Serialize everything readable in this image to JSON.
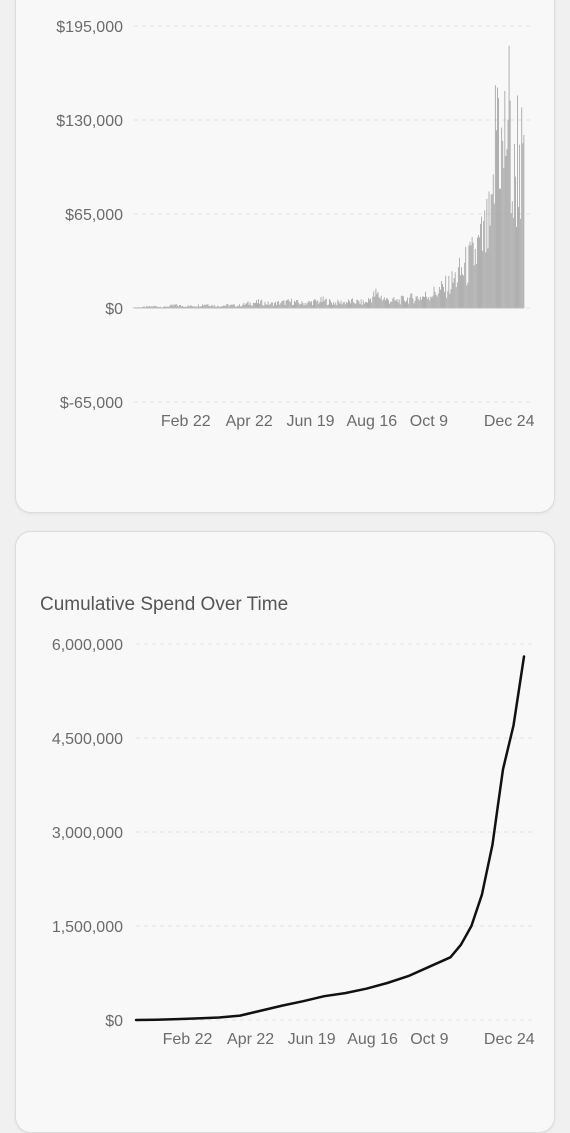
{
  "chart_data": [
    {
      "type": "bar",
      "title": "",
      "ylim": [
        -65000,
        195000
      ],
      "y_ticks": [
        "$195,000",
        "$130,000",
        "$65,000",
        "$0",
        "$-65,000"
      ],
      "y_tick_values": [
        195000,
        130000,
        65000,
        0,
        -65000
      ],
      "x_ticks": [
        "Feb 22",
        "Apr 22",
        "Jun 19",
        "Aug 16",
        "Oct 9",
        "Dec 24"
      ],
      "x_tick_days": [
        50,
        110,
        168,
        226,
        280,
        356
      ],
      "x_range_days": [
        1,
        370
      ],
      "grid": true,
      "bar_color": "#9e9e9e",
      "note": "",
      "daily_values_sampled": [
        [
          1,
          500
        ],
        [
          10,
          800
        ],
        [
          20,
          1500
        ],
        [
          30,
          900
        ],
        [
          40,
          2500
        ],
        [
          50,
          1500
        ],
        [
          60,
          2000
        ],
        [
          70,
          3500
        ],
        [
          80,
          1500
        ],
        [
          90,
          2500
        ],
        [
          100,
          2000
        ],
        [
          110,
          4000
        ],
        [
          120,
          5000
        ],
        [
          130,
          3500
        ],
        [
          140,
          4500
        ],
        [
          150,
          5500
        ],
        [
          160,
          4000
        ],
        [
          170,
          5000
        ],
        [
          180,
          6500
        ],
        [
          190,
          4500
        ],
        [
          200,
          5000
        ],
        [
          210,
          5500
        ],
        [
          220,
          4500
        ],
        [
          230,
          12000
        ],
        [
          240,
          7000
        ],
        [
          250,
          6000
        ],
        [
          260,
          8000
        ],
        [
          270,
          9000
        ],
        [
          280,
          11000
        ],
        [
          290,
          15000
        ],
        [
          300,
          20000
        ],
        [
          310,
          30000
        ],
        [
          320,
          40000
        ],
        [
          330,
          55000
        ],
        [
          340,
          70000
        ],
        [
          345,
          185000
        ],
        [
          350,
          120000
        ],
        [
          355,
          175000
        ],
        [
          360,
          90000
        ],
        [
          365,
          150000
        ],
        [
          370,
          100000
        ]
      ]
    },
    {
      "type": "line",
      "title": "Cumulative Spend Over Time",
      "ylim": [
        0,
        6000000
      ],
      "y_ticks": [
        "6,000,000",
        "4,500,000",
        "3,000,000",
        "1,500,000",
        "$0"
      ],
      "y_tick_values": [
        6000000,
        4500000,
        3000000,
        1500000,
        0
      ],
      "x_ticks": [
        "Feb 22",
        "Apr 22",
        "Jun 19",
        "Aug 16",
        "Oct 9",
        "Dec 24"
      ],
      "x_tick_days": [
        50,
        110,
        168,
        226,
        280,
        356
      ],
      "x_range_days": [
        1,
        370
      ],
      "grid": true,
      "line_color": "#111111",
      "points": [
        [
          1,
          0
        ],
        [
          20,
          5000
        ],
        [
          40,
          15000
        ],
        [
          60,
          25000
        ],
        [
          80,
          40000
        ],
        [
          100,
          70000
        ],
        [
          120,
          150000
        ],
        [
          140,
          230000
        ],
        [
          160,
          300000
        ],
        [
          180,
          380000
        ],
        [
          200,
          430000
        ],
        [
          220,
          500000
        ],
        [
          240,
          590000
        ],
        [
          260,
          700000
        ],
        [
          280,
          850000
        ],
        [
          300,
          1000000
        ],
        [
          310,
          1200000
        ],
        [
          320,
          1500000
        ],
        [
          330,
          2000000
        ],
        [
          340,
          2800000
        ],
        [
          345,
          3400000
        ],
        [
          350,
          4000000
        ],
        [
          360,
          4700000
        ],
        [
          370,
          5800000
        ]
      ]
    }
  ]
}
